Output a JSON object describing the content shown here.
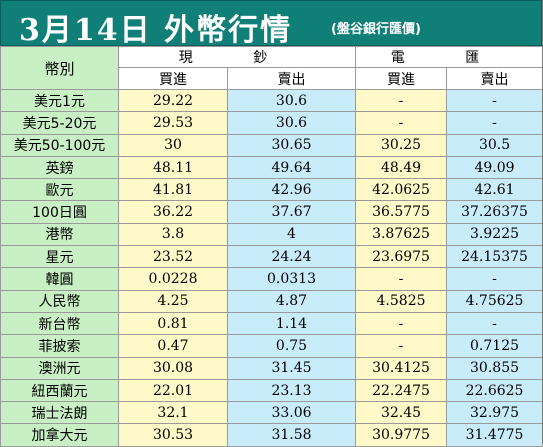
{
  "header": {
    "title": "3月14日 外幣行情",
    "source": "(盤谷銀行匯價)"
  },
  "columns": {
    "currency": "幣別",
    "cash": "現 鈔",
    "remit": "電 匯",
    "buy": "買進",
    "sell": "賣出"
  },
  "rows": [
    {
      "name": "美元1元",
      "cash_buy": "29.22",
      "cash_sell": "30.6",
      "remit_buy": "-",
      "remit_sell": "-"
    },
    {
      "name": "美元5-20元",
      "cash_buy": "29.53",
      "cash_sell": "30.6",
      "remit_buy": "-",
      "remit_sell": "-"
    },
    {
      "name": "美元50-100元",
      "cash_buy": "30",
      "cash_sell": "30.65",
      "remit_buy": "30.25",
      "remit_sell": "30.5"
    },
    {
      "name": "英鎊",
      "cash_buy": "48.11",
      "cash_sell": "49.64",
      "remit_buy": "48.49",
      "remit_sell": "49.09"
    },
    {
      "name": "歐元",
      "cash_buy": "41.81",
      "cash_sell": "42.96",
      "remit_buy": "42.0625",
      "remit_sell": "42.61"
    },
    {
      "name": "100日圓",
      "cash_buy": "36.22",
      "cash_sell": "37.67",
      "remit_buy": "36.5775",
      "remit_sell": "37.26375"
    },
    {
      "name": "港幣",
      "cash_buy": "3.8",
      "cash_sell": "4",
      "remit_buy": "3.87625",
      "remit_sell": "3.9225"
    },
    {
      "name": "星元",
      "cash_buy": "23.52",
      "cash_sell": "24.24",
      "remit_buy": "23.6975",
      "remit_sell": "24.15375"
    },
    {
      "name": "韓圓",
      "cash_buy": "0.0228",
      "cash_sell": "0.0313",
      "remit_buy": "-",
      "remit_sell": "-"
    },
    {
      "name": "人民幣",
      "cash_buy": "4.25",
      "cash_sell": "4.87",
      "remit_buy": "4.5825",
      "remit_sell": "4.75625"
    },
    {
      "name": "新台幣",
      "cash_buy": "0.81",
      "cash_sell": "1.14",
      "remit_buy": "-",
      "remit_sell": "-"
    },
    {
      "name": "菲披索",
      "cash_buy": "0.47",
      "cash_sell": "0.75",
      "remit_buy": "-",
      "remit_sell": "0.7125"
    },
    {
      "name": "澳洲元",
      "cash_buy": "30.08",
      "cash_sell": "31.45",
      "remit_buy": "30.4125",
      "remit_sell": "30.855"
    },
    {
      "name": "紐西蘭元",
      "cash_buy": "22.01",
      "cash_sell": "23.13",
      "remit_buy": "22.2475",
      "remit_sell": "22.6625"
    },
    {
      "name": "瑞士法朗",
      "cash_buy": "32.1",
      "cash_sell": "33.06",
      "remit_buy": "32.45",
      "remit_sell": "32.975"
    },
    {
      "name": "加拿大元",
      "cash_buy": "30.53",
      "cash_sell": "31.58",
      "remit_buy": "30.9775",
      "remit_sell": "31.4775"
    }
  ],
  "colors": {
    "title_bg": "#0f7f78",
    "name_col": "#c8f0c4",
    "buy_col": "#fff8c8",
    "sell_col": "#c9ecfa"
  }
}
